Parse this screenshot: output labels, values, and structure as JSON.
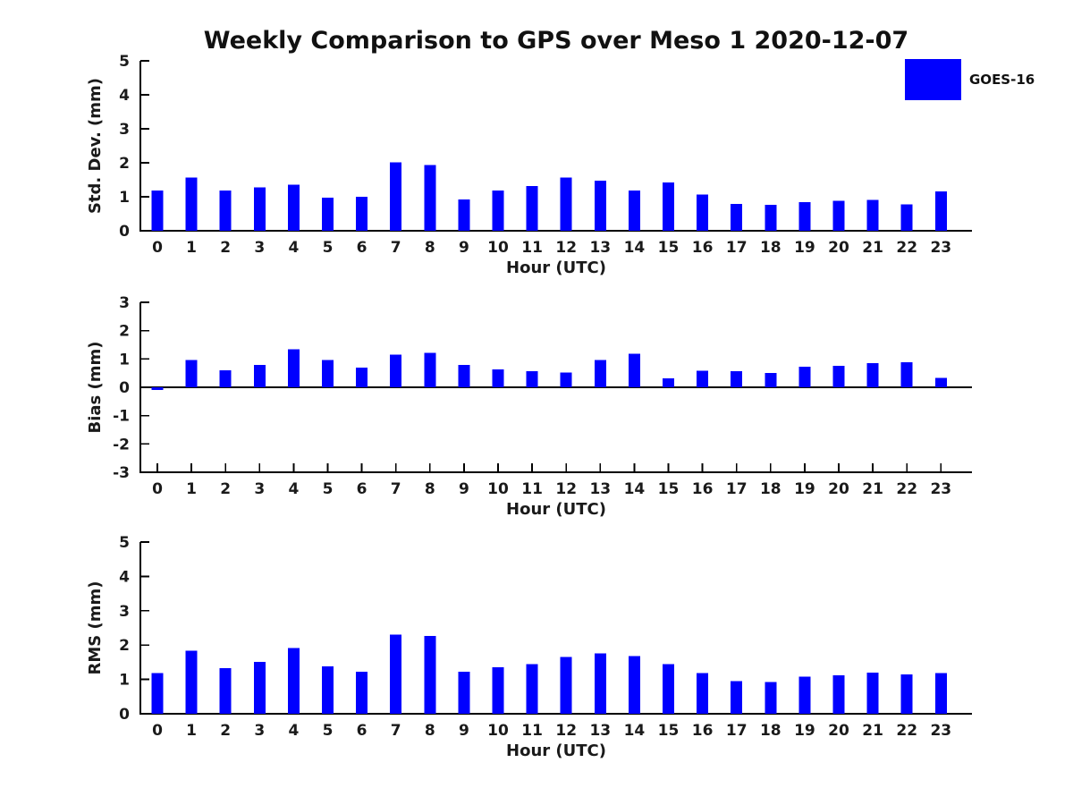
{
  "title": "Weekly Comparison to GPS over Meso 1 2020-12-07",
  "legend": {
    "label": "GOES-16",
    "color": "#0000FF"
  },
  "colors": {
    "bar": "#0000FF",
    "axis": "#000000",
    "text": "#1a1a1a",
    "background": "#ffffff"
  },
  "chart_data": [
    {
      "id": "std-dev",
      "type": "bar",
      "series_name": "GOES-16",
      "xlabel": "Hour (UTC)",
      "ylabel": "Std. Dev. (mm)",
      "categories": [
        "0",
        "1",
        "2",
        "3",
        "4",
        "5",
        "6",
        "7",
        "8",
        "9",
        "10",
        "11",
        "12",
        "13",
        "14",
        "15",
        "16",
        "17",
        "18",
        "19",
        "20",
        "21",
        "22",
        "23"
      ],
      "values": [
        1.18,
        1.57,
        1.18,
        1.28,
        1.36,
        0.97,
        1.0,
        2.01,
        1.93,
        0.92,
        1.18,
        1.32,
        1.57,
        1.47,
        1.18,
        1.42,
        1.06,
        0.79,
        0.76,
        0.84,
        0.88,
        0.91,
        0.78,
        1.16
      ],
      "ylim": [
        0,
        5
      ],
      "yticks": [
        0,
        1,
        2,
        3,
        4,
        5
      ],
      "grid": false,
      "legend_position": "upper-right-outside"
    },
    {
      "id": "bias",
      "type": "bar",
      "series_name": "GOES-16",
      "xlabel": "Hour (UTC)",
      "ylabel": "Bias (mm)",
      "categories": [
        "0",
        "1",
        "2",
        "3",
        "4",
        "5",
        "6",
        "7",
        "8",
        "9",
        "10",
        "11",
        "12",
        "13",
        "14",
        "15",
        "16",
        "17",
        "18",
        "19",
        "20",
        "21",
        "22",
        "23"
      ],
      "values": [
        -0.1,
        0.97,
        0.6,
        0.79,
        1.34,
        0.97,
        0.7,
        1.15,
        1.21,
        0.79,
        0.63,
        0.57,
        0.52,
        0.97,
        1.18,
        0.32,
        0.58,
        0.57,
        0.51,
        0.72,
        0.76,
        0.85,
        0.88,
        0.33
      ],
      "ylim": [
        -3,
        3
      ],
      "yticks": [
        -3,
        -2,
        -1,
        0,
        1,
        2,
        3
      ],
      "grid": false
    },
    {
      "id": "rms",
      "type": "bar",
      "series_name": "GOES-16",
      "xlabel": "Hour (UTC)",
      "ylabel": "RMS (mm)",
      "categories": [
        "0",
        "1",
        "2",
        "3",
        "4",
        "5",
        "6",
        "7",
        "8",
        "9",
        "10",
        "11",
        "12",
        "13",
        "14",
        "15",
        "16",
        "17",
        "18",
        "19",
        "20",
        "21",
        "22",
        "23"
      ],
      "values": [
        1.19,
        1.84,
        1.33,
        1.51,
        1.92,
        1.38,
        1.22,
        2.3,
        2.27,
        1.22,
        1.35,
        1.45,
        1.66,
        1.76,
        1.68,
        1.45,
        1.19,
        0.95,
        0.92,
        1.08,
        1.12,
        1.2,
        1.15,
        1.18
      ],
      "ylim": [
        0,
        5
      ],
      "yticks": [
        0,
        1,
        2,
        3,
        4,
        5
      ],
      "grid": false
    }
  ]
}
